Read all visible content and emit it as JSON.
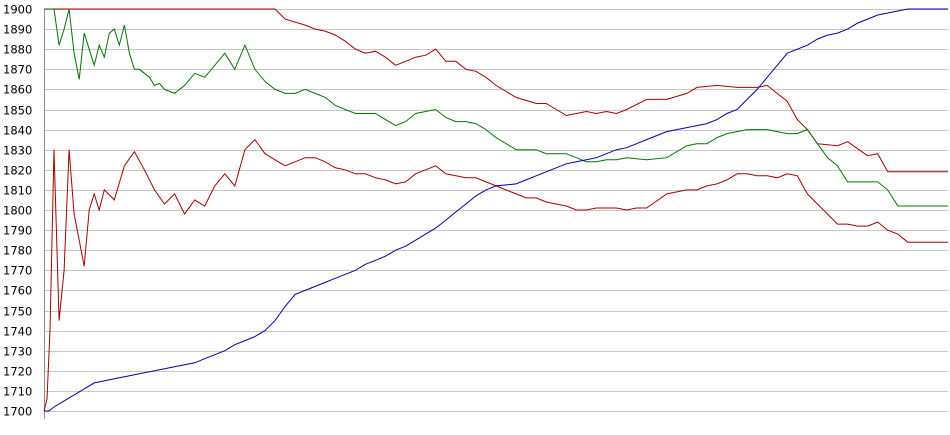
{
  "chart_data": {
    "type": "line",
    "title": "",
    "xlabel": "",
    "ylabel": "",
    "ylim": [
      1700,
      1900
    ],
    "yticks": [
      1700,
      1710,
      1720,
      1730,
      1740,
      1750,
      1760,
      1770,
      1780,
      1790,
      1800,
      1810,
      1820,
      1830,
      1840,
      1850,
      1860,
      1870,
      1880,
      1890,
      1900
    ],
    "xlim": [
      0,
      90
    ],
    "grid": true,
    "legend": "none",
    "colors": {
      "grid": "#c8c8c8",
      "axis": "#8c8c8c",
      "red": "#aa0000",
      "green": "#007700",
      "blue": "#0000aa"
    },
    "series": [
      {
        "color": "#aa0000",
        "x": [
          0,
          23,
          24,
          26,
          27,
          28,
          29,
          30,
          31,
          32,
          33,
          34,
          35,
          36,
          37,
          38,
          39,
          40,
          41,
          42,
          43,
          44,
          45,
          47,
          49,
          50,
          51,
          52,
          53,
          54,
          55,
          56,
          57,
          58,
          60,
          62,
          64,
          65,
          67,
          69,
          70,
          71,
          72,
          74,
          75,
          76,
          77,
          79,
          80,
          82,
          83,
          84,
          85,
          86,
          87,
          88,
          89,
          90
        ],
        "y": [
          1900,
          1900,
          1895,
          1892,
          1890,
          1889,
          1887,
          1884,
          1880,
          1878,
          1879,
          1876,
          1872,
          1874,
          1876,
          1877,
          1880,
          1874,
          1874,
          1870,
          1869,
          1866,
          1862,
          1856,
          1853,
          1853,
          1850,
          1847,
          1848,
          1849,
          1848,
          1849,
          1848,
          1850,
          1855,
          1855,
          1858,
          1861,
          1862,
          1861,
          1861,
          1861,
          1862,
          1854,
          1845,
          1840,
          1833,
          1832,
          1834,
          1827,
          1828,
          1819,
          1819,
          1819,
          1819,
          1819,
          1819,
          1819
        ]
      },
      {
        "color": "#aa0000",
        "x": [
          0,
          0.3,
          0.6,
          1,
          1.5,
          2,
          2.5,
          3,
          3.5,
          4,
          4.5,
          5,
          5.5,
          6,
          7,
          8,
          9,
          10,
          11,
          12,
          13,
          14,
          15,
          16,
          17,
          18,
          19,
          20,
          21,
          22,
          23,
          24,
          25,
          26,
          27,
          28,
          29,
          30,
          31,
          32,
          33,
          34,
          35,
          36,
          37,
          38,
          39,
          40,
          41,
          42,
          43,
          44,
          45,
          47,
          48,
          49,
          50,
          51,
          52,
          53,
          54,
          55,
          56,
          57,
          58,
          59,
          60,
          62,
          64,
          65,
          66,
          67,
          68,
          69,
          70,
          71,
          72,
          73,
          74,
          75,
          76,
          77,
          78,
          79,
          80,
          81,
          82,
          83,
          84,
          85,
          86,
          87,
          88,
          89,
          90
        ],
        "y": [
          1700,
          1706,
          1740,
          1830,
          1745,
          1770,
          1830,
          1798,
          1785,
          1772,
          1800,
          1808,
          1800,
          1810,
          1805,
          1822,
          1829,
          1820,
          1810,
          1803,
          1808,
          1798,
          1805,
          1802,
          1812,
          1818,
          1812,
          1830,
          1835,
          1828,
          1825,
          1822,
          1824,
          1826,
          1826,
          1824,
          1821,
          1820,
          1818,
          1818,
          1816,
          1815,
          1813,
          1814,
          1818,
          1820,
          1822,
          1818,
          1817,
          1816,
          1816,
          1814,
          1812,
          1808,
          1806,
          1806,
          1804,
          1803,
          1802,
          1800,
          1800,
          1801,
          1801,
          1801,
          1800,
          1801,
          1801,
          1808,
          1810,
          1810,
          1812,
          1813,
          1815,
          1818,
          1818,
          1817,
          1817,
          1816,
          1818,
          1817,
          1808,
          1803,
          1798,
          1793,
          1793,
          1792,
          1792,
          1794,
          1790,
          1788,
          1784,
          1784,
          1784,
          1784,
          1784
        ]
      },
      {
        "color": "#007700",
        "x": [
          0,
          1,
          1.5,
          2,
          2.5,
          3,
          3.5,
          4,
          4.5,
          5,
          5.5,
          6,
          6.5,
          7,
          7.5,
          8,
          8.5,
          9,
          9.5,
          10,
          10.5,
          11,
          11.5,
          12,
          13,
          14,
          15,
          16,
          17,
          18,
          19,
          20,
          21,
          22,
          23,
          24,
          25,
          26,
          27,
          28,
          29,
          30,
          31,
          32,
          33,
          34,
          35,
          36,
          37,
          38,
          39,
          40,
          41,
          42,
          43,
          44,
          45,
          47,
          49,
          50,
          51,
          52,
          53,
          54,
          55,
          56,
          57,
          58,
          60,
          62,
          64,
          65,
          66,
          67,
          68,
          69,
          70,
          71,
          72,
          73,
          74,
          75,
          76,
          77,
          78,
          79,
          80,
          81,
          82,
          83,
          84,
          85,
          86,
          87,
          88,
          89,
          90
        ],
        "y": [
          1900,
          1900,
          1882,
          1890,
          1900,
          1878,
          1865,
          1888,
          1880,
          1872,
          1882,
          1876,
          1888,
          1890,
          1882,
          1892,
          1878,
          1870,
          1870,
          1868,
          1866,
          1862,
          1863,
          1860,
          1858,
          1862,
          1868,
          1866,
          1872,
          1878,
          1870,
          1882,
          1870,
          1864,
          1860,
          1858,
          1858,
          1860,
          1858,
          1856,
          1852,
          1850,
          1848,
          1848,
          1848,
          1845,
          1842,
          1844,
          1848,
          1849,
          1850,
          1846,
          1844,
          1844,
          1843,
          1840,
          1836,
          1830,
          1830,
          1828,
          1828,
          1828,
          1826,
          1824,
          1824,
          1825,
          1825,
          1826,
          1825,
          1826,
          1832,
          1833,
          1833,
          1836,
          1838,
          1839,
          1840,
          1840,
          1840,
          1839,
          1838,
          1838,
          1840,
          1833,
          1826,
          1822,
          1814,
          1814,
          1814,
          1814,
          1810,
          1802,
          1802,
          1802,
          1802,
          1802,
          1802
        ]
      },
      {
        "color": "#0000aa",
        "x": [
          0,
          0.5,
          1,
          2,
          3,
          4,
          5,
          6,
          7,
          8,
          9,
          10,
          11,
          12,
          13,
          14,
          15,
          16,
          17,
          18,
          19,
          20,
          21,
          22,
          23,
          24,
          25,
          26,
          27,
          28,
          29,
          30,
          31,
          32,
          33,
          34,
          35,
          36,
          37,
          38,
          39,
          40,
          41,
          42,
          43,
          44,
          45,
          47,
          48,
          49,
          50,
          51,
          52,
          53,
          54,
          55,
          56,
          57,
          58,
          59,
          60,
          61,
          62,
          63,
          64,
          65,
          66,
          67,
          68,
          69,
          70,
          71,
          72,
          73,
          74,
          75,
          76,
          77,
          78,
          79,
          80,
          81,
          82,
          83,
          84,
          85,
          86,
          87,
          88,
          89,
          90
        ],
        "y": [
          1700,
          1700,
          1702,
          1705,
          1708,
          1711,
          1714,
          1715,
          1716,
          1717,
          1718,
          1719,
          1720,
          1721,
          1722,
          1723,
          1724,
          1726,
          1728,
          1730,
          1733,
          1735,
          1737,
          1740,
          1745,
          1752,
          1758,
          1760,
          1762,
          1764,
          1766,
          1768,
          1770,
          1773,
          1775,
          1777,
          1780,
          1782,
          1785,
          1788,
          1791,
          1795,
          1799,
          1803,
          1807,
          1810,
          1812,
          1813,
          1815,
          1817,
          1819,
          1821,
          1823,
          1824,
          1825,
          1826,
          1828,
          1830,
          1831,
          1833,
          1835,
          1837,
          1839,
          1840,
          1841,
          1842,
          1843,
          1845,
          1848,
          1850,
          1855,
          1860,
          1866,
          1872,
          1878,
          1880,
          1882,
          1885,
          1887,
          1888,
          1890,
          1893,
          1895,
          1897,
          1898,
          1899,
          1900,
          1900,
          1900,
          1900,
          1900
        ]
      }
    ]
  }
}
